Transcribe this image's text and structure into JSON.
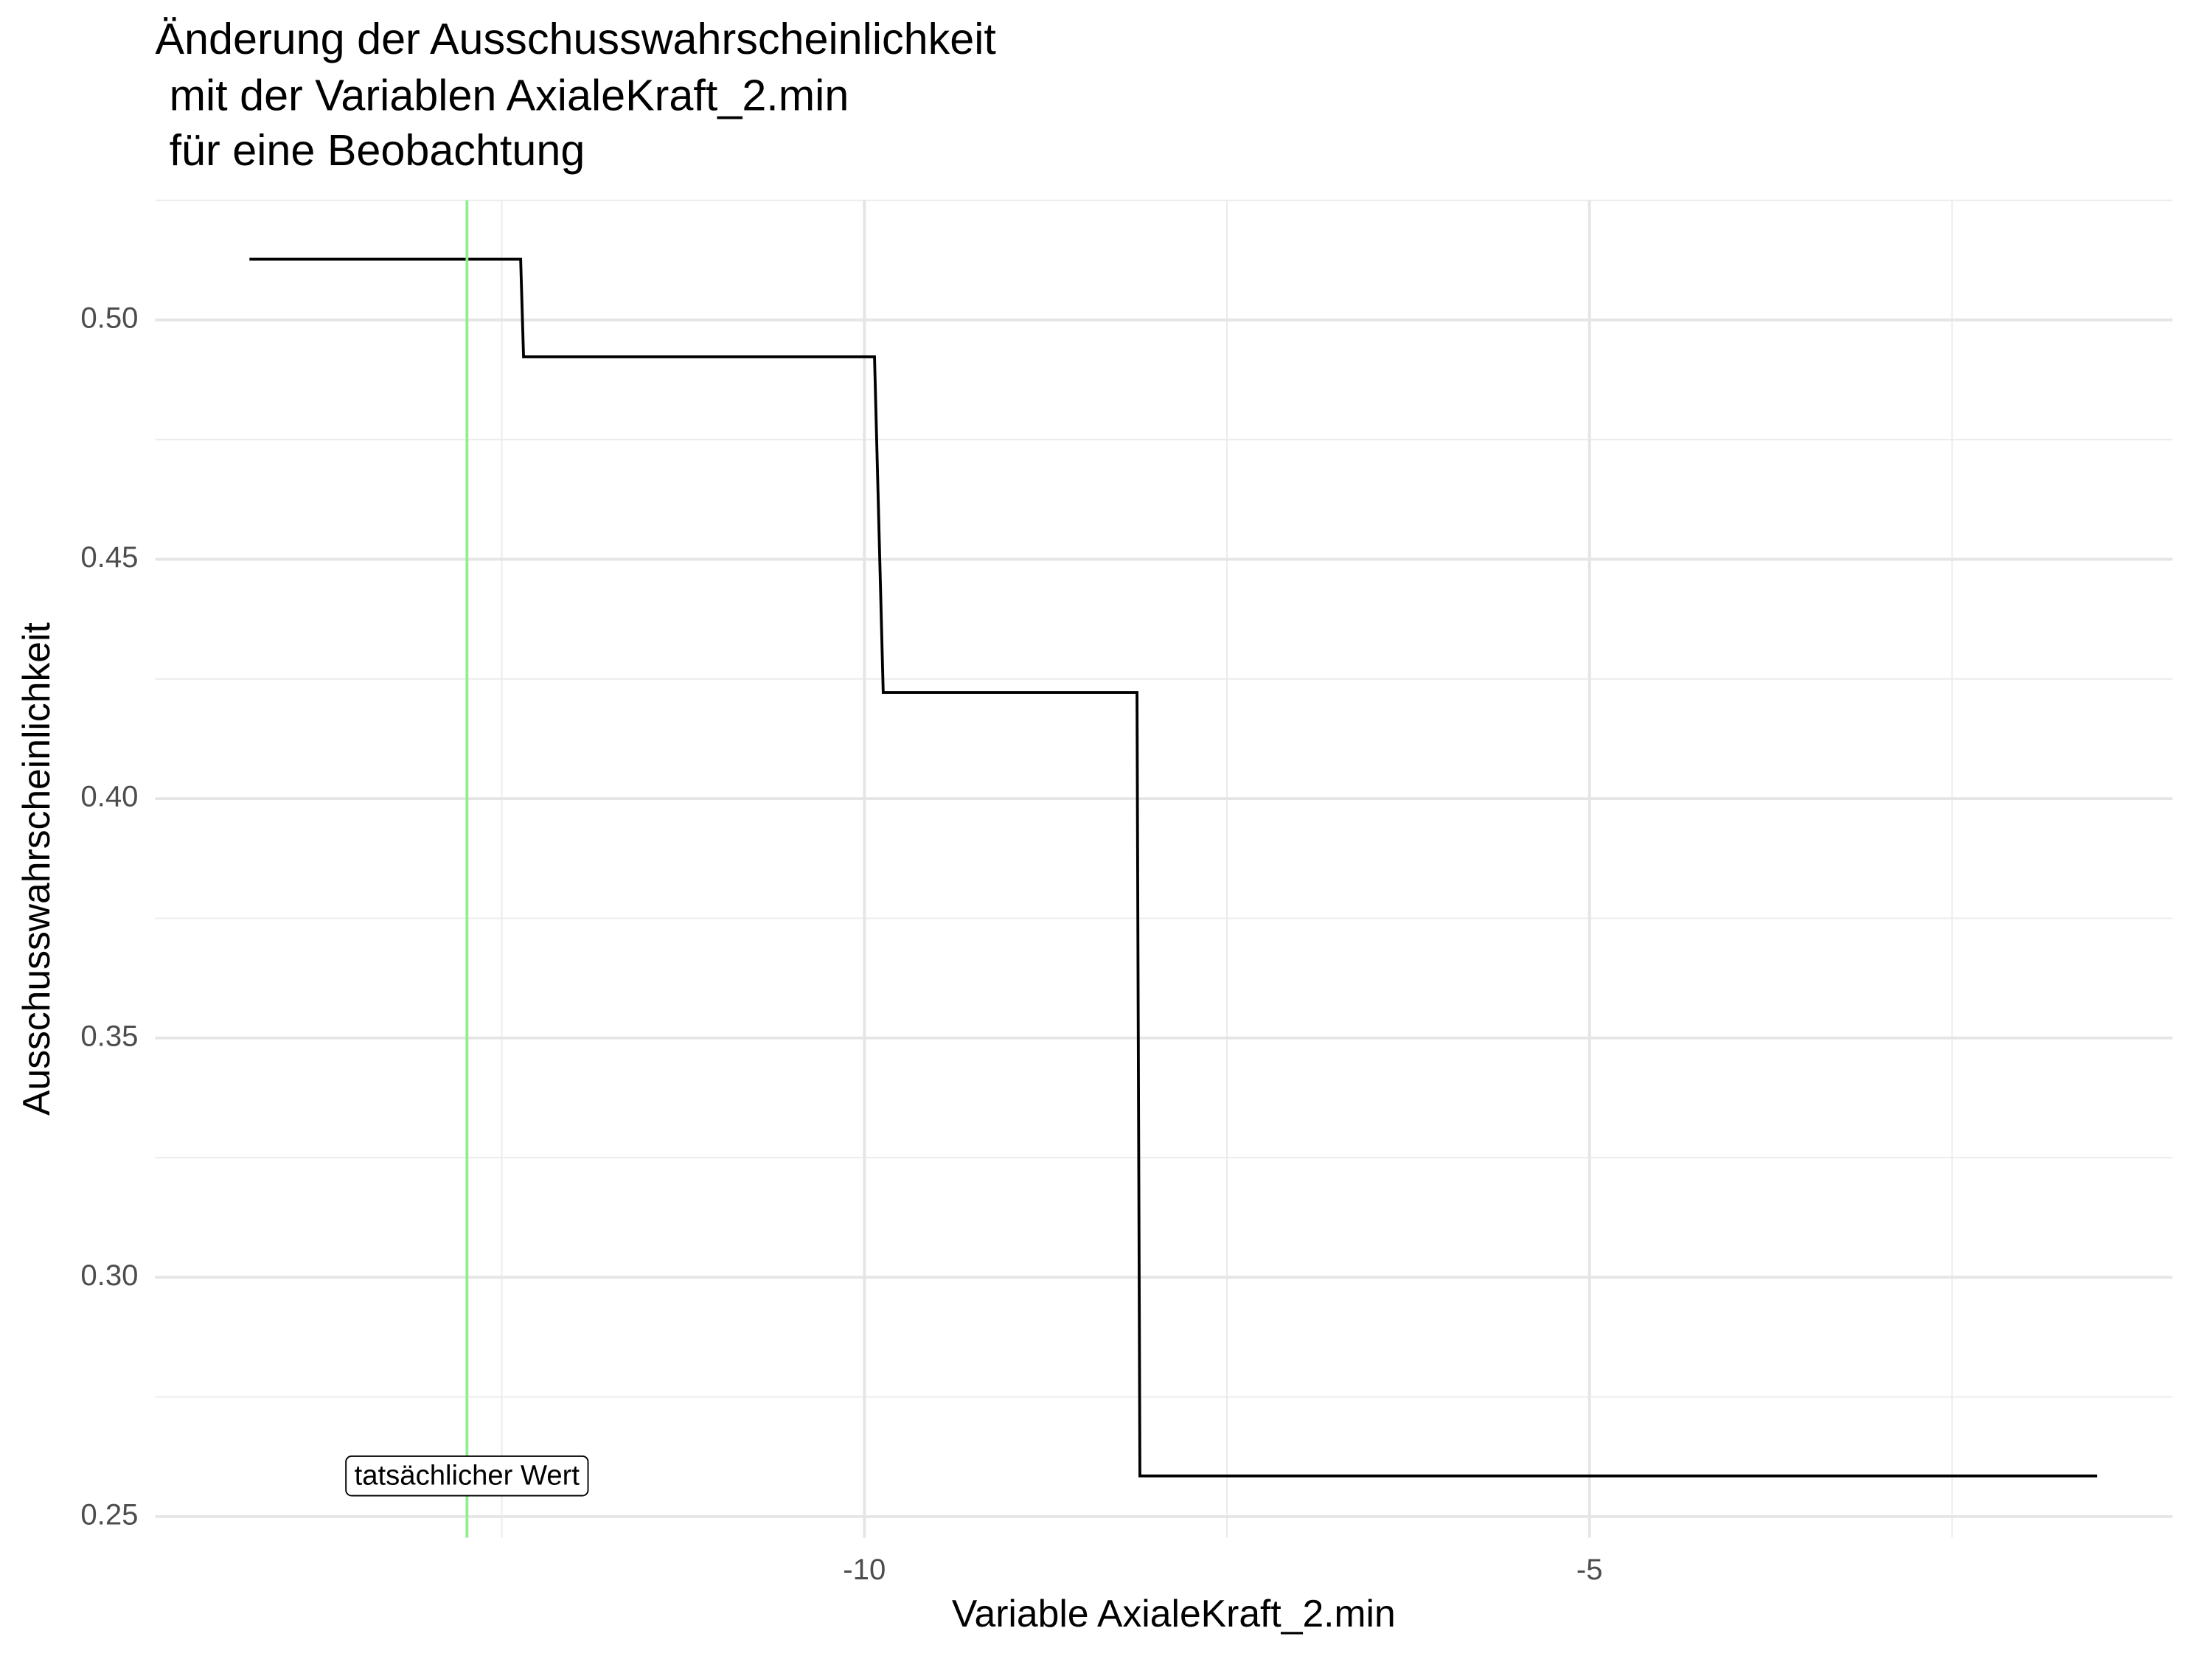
{
  "chart_data": {
    "type": "line",
    "title": [
      "Änderung der Ausschusswahrscheinlichkeit",
      "mit der Variablen AxialeKraft_2.min",
      "für eine Beobachtung"
    ],
    "xlabel": "Variable AxialeKraft_2.min",
    "ylabel": "Ausschusswahrscheinlichkeit",
    "x": [
      -14.24,
      -12.37,
      -12.35,
      -9.93,
      -9.87,
      -8.12,
      -8.1,
      -1.5
    ],
    "series": [
      {
        "color": "#000000",
        "values": [
          0.5127,
          0.5127,
          0.4923,
          0.4923,
          0.4222,
          0.4222,
          0.2585,
          0.2585
        ]
      }
    ],
    "vline": {
      "x": -12.74,
      "color": "#90ee90"
    },
    "annotation": {
      "text": "tatsächlicher Wert",
      "x": -12.74,
      "y": 0.2585
    },
    "xlim": [
      -14.89,
      -0.98
    ],
    "ylim": [
      0.2456,
      0.525
    ],
    "xticks": [
      -10,
      -5
    ],
    "yticks": [
      {
        "value": 0.25,
        "label": "0.25"
      },
      {
        "value": 0.3,
        "label": "0.30"
      },
      0.35,
      {
        "value": 0.4,
        "label": "0.40"
      },
      0.45,
      {
        "value": 0.5,
        "label": "0.50"
      }
    ],
    "xminor": [
      -12.5,
      -7.5,
      -2.5
    ],
    "yminor": [
      0.275,
      0.325,
      0.375,
      0.425,
      0.475,
      0.525
    ],
    "grid": true
  }
}
